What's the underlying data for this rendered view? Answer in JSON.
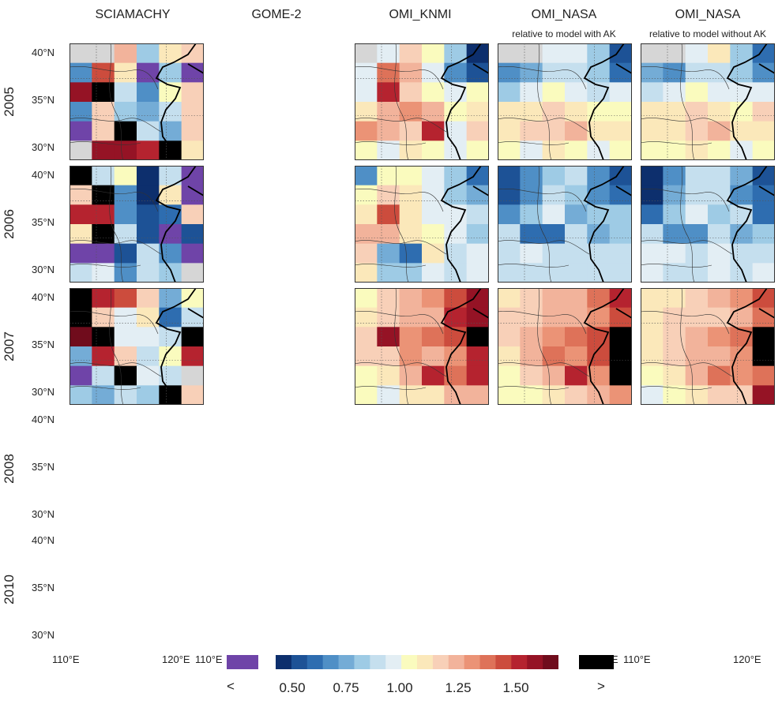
{
  "chart_data": {
    "type": "heatmap",
    "columns": [
      {
        "title": "SCIAMACHY",
        "subtitle": ""
      },
      {
        "title": "GOME-2",
        "subtitle": ""
      },
      {
        "title": "OMI_KNMI",
        "subtitle": ""
      },
      {
        "title": "OMI_NASA",
        "subtitle": "relative to model with AK"
      },
      {
        "title": "OMI_NASA",
        "subtitle": "relative to model without AK"
      }
    ],
    "rows": [
      "2005",
      "2006",
      "2007",
      "2008",
      "2010"
    ],
    "lat_ticks": [
      "40°N",
      "35°N",
      "30°N"
    ],
    "lon_ticks": [
      "110°E",
      "120°E"
    ],
    "colorbar": {
      "under_label": "<",
      "over_label": ">",
      "tick_labels": [
        "0.50",
        "0.75",
        "1.00",
        "1.25",
        "1.50"
      ],
      "range": [
        0.5,
        1.5
      ],
      "under_color": "#6f44a8",
      "over_color": "#000000",
      "colors": [
        "#0d2f6d",
        "#1d5296",
        "#2e6db0",
        "#4f8fc6",
        "#74acd6",
        "#9ecbe5",
        "#c5dfee",
        "#e3eef4",
        "#fafbbe",
        "#fbe8ba",
        "#f8d0b8",
        "#f2b39b",
        "#eb9376",
        "#de7259",
        "#cc4c3d",
        "#b5232f",
        "#951325",
        "#700c1c"
      ]
    },
    "panels": [
      {
        "row": 0,
        "col": 0,
        "grid": [
          [
            null,
            null,
            1.14,
            0.82,
            1.0,
            1.06
          ],
          [
            0.7,
            1.32,
            1.04,
            0.42,
            0.82,
            0.38
          ],
          [
            1.4,
            9,
            0.86,
            0.68,
            0.95,
            1.06
          ],
          [
            0.72,
            1.08,
            0.78,
            0.74,
            0.88,
            1.08
          ],
          [
            0.42,
            1.08,
            9,
            0.88,
            0.74,
            1.08
          ],
          [
            null,
            1.42,
            1.42,
            1.35,
            9,
            1.05
          ]
        ]
      },
      {
        "row": 0,
        "col": 2,
        "grid": [
          [
            null,
            0.92,
            1.08,
            0.96,
            0.78,
            0.52
          ],
          [
            0.9,
            1.26,
            1.12,
            0.9,
            0.72,
            0.6
          ],
          [
            0.92,
            1.38,
            1.06,
            0.98,
            0.9,
            0.96
          ],
          [
            1.02,
            1.15,
            1.2,
            1.12,
            0.95,
            1.02
          ],
          [
            1.18,
            1.12,
            1.1,
            1.34,
            0.94,
            1.06
          ],
          [
            0.96,
            0.9,
            1.04,
            0.98,
            0.92,
            0.98
          ]
        ]
      },
      {
        "row": 0,
        "col": 3,
        "grid": [
          [
            null,
            null,
            0.9,
            0.92,
            0.8,
            0.58
          ],
          [
            0.7,
            0.74,
            0.86,
            0.86,
            0.78,
            0.64
          ],
          [
            0.82,
            0.92,
            0.98,
            0.94,
            0.88,
            0.92
          ],
          [
            1.0,
            1.02,
            1.06,
            1.04,
            0.96,
            0.98
          ],
          [
            1.04,
            1.06,
            1.08,
            1.16,
            1.0,
            1.02
          ],
          [
            0.96,
            0.94,
            1.0,
            0.98,
            0.94,
            0.96
          ]
        ]
      },
      {
        "row": 0,
        "col": 4,
        "grid": [
          [
            null,
            null,
            0.92,
            1.0,
            0.82,
            0.62
          ],
          [
            0.76,
            0.7,
            0.86,
            0.88,
            0.78,
            0.7
          ],
          [
            0.84,
            0.92,
            0.98,
            0.94,
            0.9,
            0.92
          ],
          [
            1.0,
            1.02,
            1.06,
            1.04,
            0.98,
            1.1
          ],
          [
            1.02,
            1.04,
            1.08,
            1.12,
            1.0,
            1.04
          ],
          [
            0.98,
            0.96,
            1.0,
            0.98,
            0.94,
            0.96
          ]
        ]
      },
      {
        "row": 1,
        "col": 0,
        "grid": [
          [
            9,
            0.86,
            0.96,
            0.5,
            0.84,
            0.4
          ],
          [
            1.08,
            9,
            0.72,
            0.5,
            1.04,
            0.38
          ],
          [
            1.38,
            1.36,
            0.68,
            0.56,
            0.62,
            1.1
          ],
          [
            1.02,
            9,
            0.86,
            0.58,
            0.48,
            0.6
          ],
          [
            0.38,
            0.38,
            0.6,
            0.86,
            0.72,
            0.44
          ],
          [
            0.84,
            0.9,
            0.7,
            0.86,
            0.78,
            null
          ]
        ]
      },
      {
        "row": 1,
        "col": 2,
        "grid": [
          [
            0.72,
            0.96,
            0.96,
            0.94,
            0.78,
            0.62
          ],
          [
            0.96,
            1.08,
            1.0,
            0.9,
            0.82,
            0.74
          ],
          [
            1.02,
            1.28,
            1.0,
            0.94,
            0.9,
            0.86
          ],
          [
            1.16,
            1.12,
            1.02,
            0.98,
            0.92,
            0.82
          ],
          [
            1.08,
            0.76,
            0.64,
            1.0,
            0.88,
            0.9
          ],
          [
            1.0,
            0.82,
            0.78,
            0.9,
            0.84,
            0.9
          ]
        ]
      },
      {
        "row": 1,
        "col": 3,
        "grid": [
          [
            0.56,
            0.72,
            0.82,
            0.84,
            0.72,
            0.58
          ],
          [
            0.6,
            0.72,
            0.84,
            0.82,
            0.72,
            0.66
          ],
          [
            0.72,
            0.82,
            0.92,
            0.74,
            0.82,
            0.82
          ],
          [
            0.84,
            0.66,
            0.64,
            0.86,
            0.74,
            0.78
          ],
          [
            0.86,
            0.9,
            0.84,
            0.88,
            0.84,
            0.86
          ],
          [
            0.88,
            0.86,
            0.84,
            0.88,
            0.86,
            0.88
          ]
        ]
      },
      {
        "row": 1,
        "col": 4,
        "grid": [
          [
            0.5,
            0.72,
            0.84,
            0.86,
            0.74,
            0.6
          ],
          [
            0.52,
            0.74,
            0.86,
            0.84,
            0.72,
            0.66
          ],
          [
            0.64,
            0.82,
            0.94,
            0.8,
            0.84,
            0.62
          ],
          [
            0.86,
            0.72,
            0.72,
            0.86,
            0.74,
            0.8
          ],
          [
            0.9,
            0.92,
            0.86,
            0.9,
            0.86,
            0.86
          ],
          [
            0.9,
            0.88,
            0.86,
            0.9,
            0.86,
            0.9
          ]
        ]
      },
      {
        "row": 2,
        "col": 0,
        "grid": [
          [
            9,
            1.34,
            1.3,
            1.06,
            0.76,
            0.98
          ],
          [
            9,
            1.1,
            0.92,
            1.04,
            0.64,
            0.86
          ],
          [
            1.46,
            9,
            0.9,
            0.94,
            0.88,
            9
          ],
          [
            0.74,
            1.36,
            1.1,
            0.86,
            0.98,
            1.36
          ],
          [
            0.44,
            0.86,
            9,
            0.9,
            0.84,
            null
          ],
          [
            0.82,
            0.76,
            0.84,
            0.82,
            9,
            1.06
          ]
        ]
      },
      {
        "row": 2,
        "col": 2,
        "grid": [
          [
            0.96,
            1.1,
            1.14,
            1.22,
            1.32,
            1.44
          ],
          [
            1.04,
            1.06,
            1.12,
            1.16,
            1.34,
            1.4
          ],
          [
            1.08,
            1.42,
            1.2,
            1.26,
            1.28,
            9
          ],
          [
            1.06,
            1.1,
            1.22,
            1.16,
            1.22,
            1.36
          ],
          [
            0.98,
            1.02,
            1.14,
            1.36,
            1.24,
            1.36
          ],
          [
            0.96,
            0.94,
            1.02,
            1.04,
            1.12,
            1.16
          ]
        ]
      },
      {
        "row": 2,
        "col": 3,
        "grid": [
          [
            1.0,
            1.06,
            1.12,
            1.16,
            1.26,
            1.36
          ],
          [
            1.06,
            1.1,
            1.14,
            1.12,
            1.2,
            1.3
          ],
          [
            1.1,
            1.14,
            1.22,
            1.24,
            1.3,
            9
          ],
          [
            1.02,
            1.12,
            1.24,
            1.18,
            1.28,
            9
          ],
          [
            0.98,
            1.1,
            1.16,
            1.34,
            1.22,
            9
          ],
          [
            0.96,
            0.98,
            1.04,
            1.1,
            1.14,
            1.2
          ]
        ]
      },
      {
        "row": 2,
        "col": 4,
        "grid": [
          [
            1.0,
            1.04,
            1.08,
            1.14,
            1.2,
            1.3
          ],
          [
            1.02,
            1.06,
            1.1,
            1.1,
            1.16,
            1.24
          ],
          [
            1.04,
            1.1,
            1.16,
            1.2,
            1.26,
            9
          ],
          [
            1.0,
            1.08,
            1.16,
            1.14,
            1.22,
            9
          ],
          [
            0.96,
            1.04,
            1.12,
            1.26,
            1.18,
            1.26
          ],
          [
            0.94,
            0.96,
            1.02,
            1.06,
            1.1,
            1.42
          ]
        ]
      }
    ]
  }
}
